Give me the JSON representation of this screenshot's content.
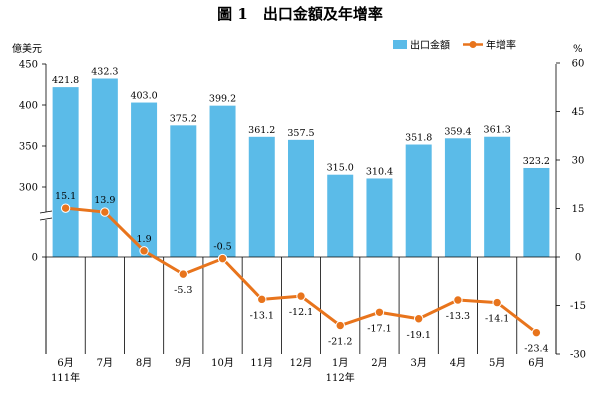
{
  "chart_data": {
    "type": "bar",
    "title": "圖 1　出口金額及年增率",
    "y_left_unit": "億美元",
    "y_right_unit": "%",
    "categories": [
      "6月",
      "7月",
      "8月",
      "9月",
      "10月",
      "11月",
      "12月",
      "1月",
      "2月",
      "3月",
      "4月",
      "5月",
      "6月"
    ],
    "year_labels": [
      "111年",
      "",
      "",
      "",
      "",
      "",
      "",
      "112年",
      "",
      "",
      "",
      "",
      ""
    ],
    "series": [
      {
        "name": "出口金額",
        "kind": "bar",
        "axis": "left",
        "color": "#5bbbe8",
        "values": [
          421.8,
          432.3,
          403.0,
          375.2,
          399.2,
          361.2,
          357.5,
          315.0,
          310.4,
          351.8,
          359.4,
          361.3,
          323.2
        ],
        "labels": [
          "421.8",
          "432.3",
          "403.0",
          "375.2",
          "399.2",
          "361.2",
          "357.5",
          "315.0",
          "310.4",
          "351.8",
          "359.4",
          "361.3",
          "323.2"
        ]
      },
      {
        "name": "年增率",
        "kind": "line",
        "axis": "right",
        "color": "#e8741c",
        "values": [
          15.1,
          13.9,
          1.9,
          -5.3,
          -0.5,
          -13.1,
          -12.1,
          -21.2,
          -17.1,
          -19.1,
          -13.3,
          -14.1,
          -23.4
        ],
        "labels": [
          "15.1",
          "13.9",
          "1.9",
          "-5.3",
          "-0.5",
          "-13.1",
          "-12.1",
          "-21.2",
          "-17.1",
          "-19.1",
          "-13.3",
          "-14.1",
          "-23.4"
        ]
      }
    ],
    "y_left_ticks": [
      "450",
      "400",
      "350",
      "300",
      "0"
    ],
    "y_right_ticks": [
      "60",
      "45",
      "30",
      "15",
      "0",
      "-15",
      "-30"
    ],
    "y_left_broken_axis": true,
    "y_right_range": [
      -30,
      60
    ],
    "legend_position": "top-right"
  }
}
